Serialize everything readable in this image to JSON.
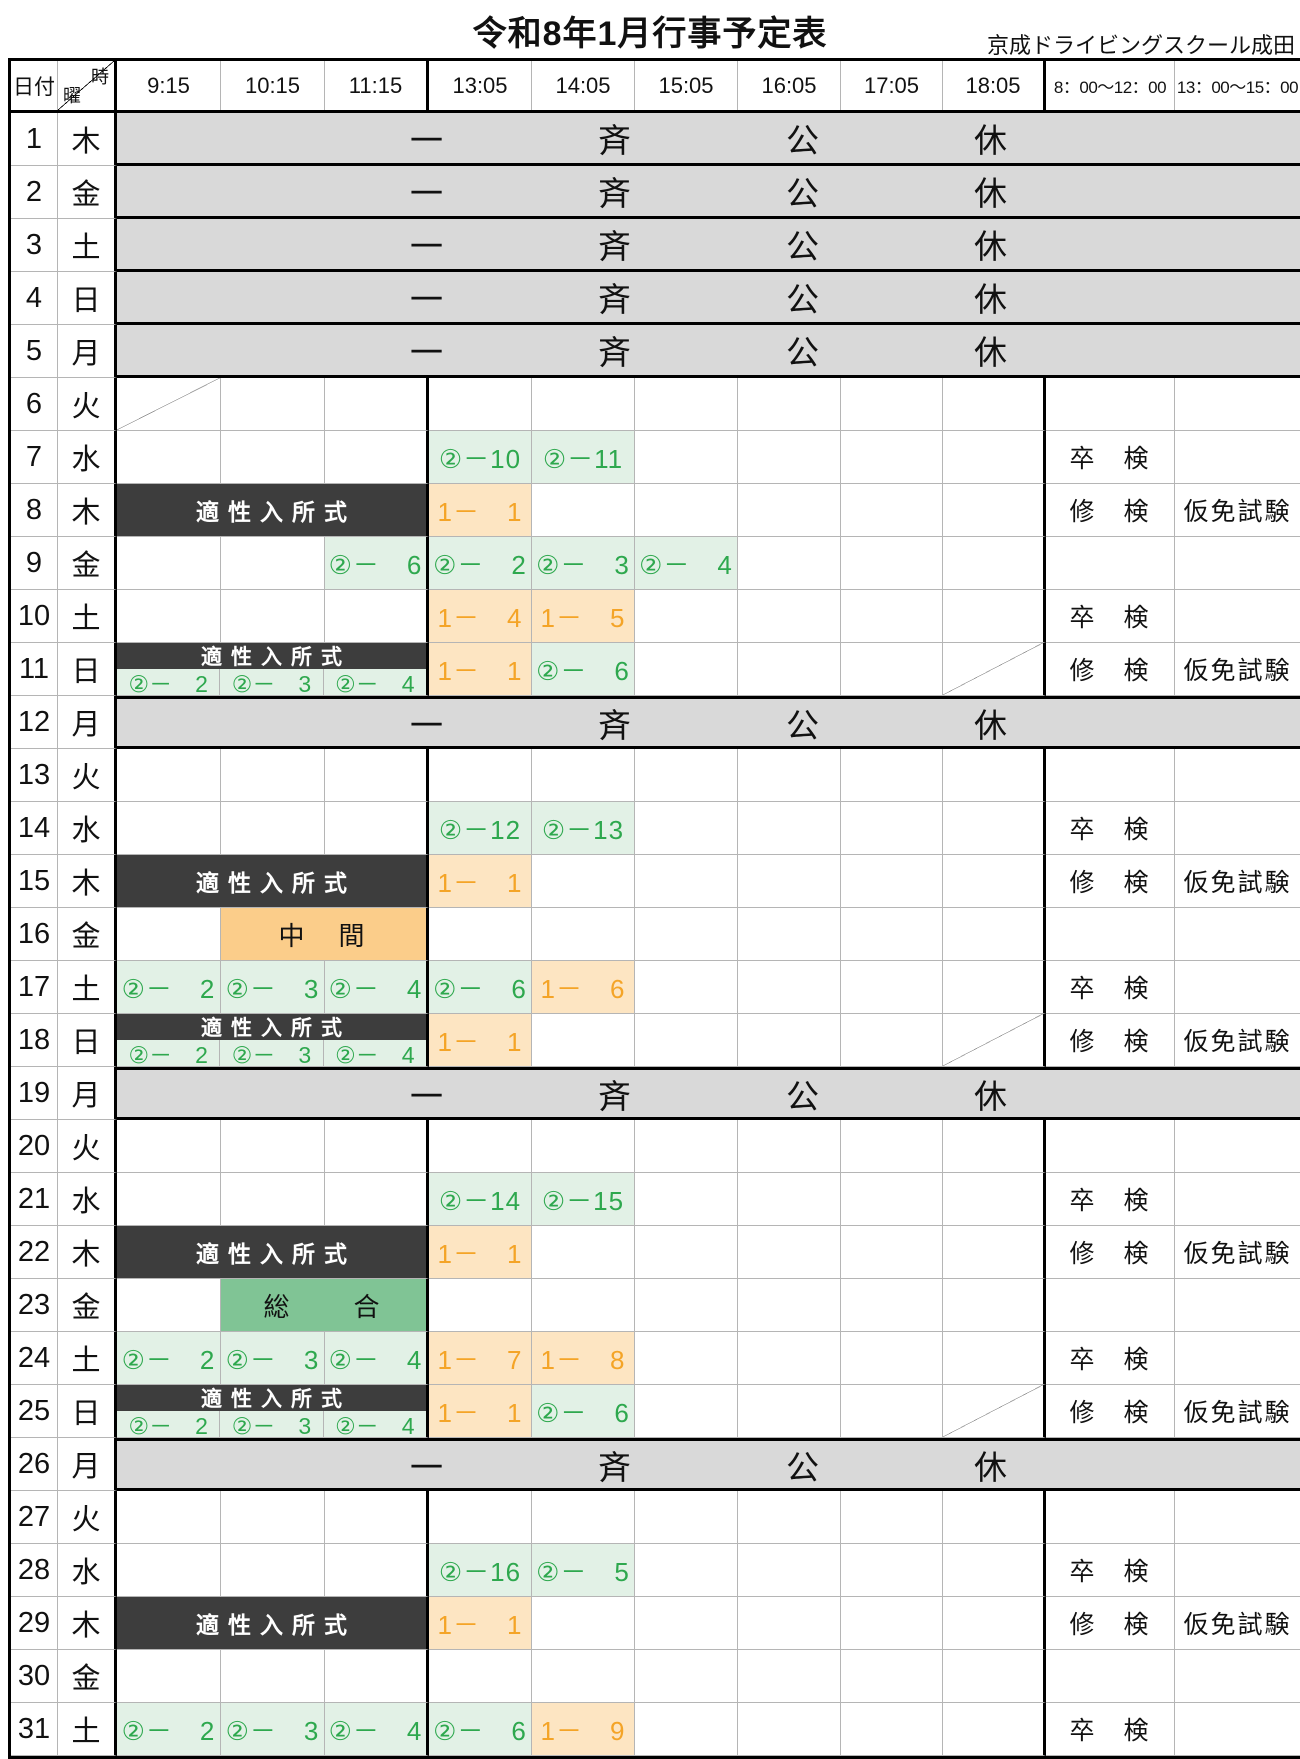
{
  "title": "令和8年1月行事予定表",
  "subtitle": "京成ドライビングスクール成田",
  "header": {
    "date_label": "日付",
    "time_label": "時",
    "day_label": "曜",
    "time_columns": [
      "9:15",
      "10:15",
      "11:15",
      "13:05",
      "14:05",
      "15:05",
      "16:05",
      "17:05",
      "18:05"
    ],
    "exam_columns": [
      "8：00～12：00",
      "13：00～15：00"
    ]
  },
  "labels": {
    "holiday": "一斉公休",
    "ceremony": "適性入所式",
    "midterm": "中　間",
    "sougou": "総　　合",
    "sotsuken": "卒　検",
    "shuken": "修　検",
    "karimen": "仮免試験"
  },
  "colors": {
    "holiday_bg": "#d9d9d9",
    "ceremony_bg": "#3d3d3d",
    "ceremony_text": "#ffffff",
    "lesson2_bg": "#e2f1e6",
    "lesson2_text": "#2ea84e",
    "lesson1_bg": "#fde5c2",
    "lesson1_text": "#f4a427",
    "midterm_bg": "#fbcd8a",
    "sougou_bg": "#80c495"
  },
  "rows": [
    {
      "date": "1",
      "day": "木",
      "type": "holiday"
    },
    {
      "date": "2",
      "day": "金",
      "type": "holiday"
    },
    {
      "date": "3",
      "day": "土",
      "type": "holiday"
    },
    {
      "date": "4",
      "day": "日",
      "type": "holiday"
    },
    {
      "date": "5",
      "day": "月",
      "type": "holiday"
    },
    {
      "date": "6",
      "day": "火",
      "type": "normal",
      "diag_first": true,
      "cells": [],
      "exam": ""
    },
    {
      "date": "7",
      "day": "水",
      "type": "normal",
      "cells": [
        {
          "col": 3,
          "text": "②－10",
          "style": "green"
        },
        {
          "col": 4,
          "text": "②－11",
          "style": "green"
        }
      ],
      "exam": "sotsuken"
    },
    {
      "date": "8",
      "day": "木",
      "type": "normal",
      "ceremony": "full",
      "cells": [
        {
          "col": 3,
          "text": "1－　1",
          "style": "orange"
        }
      ],
      "exam": "karimen"
    },
    {
      "date": "9",
      "day": "金",
      "type": "normal",
      "cells": [
        {
          "col": 2,
          "text": "②－　6",
          "style": "green"
        },
        {
          "col": 3,
          "text": "②－　2",
          "style": "green"
        },
        {
          "col": 4,
          "text": "②－　3",
          "style": "green"
        },
        {
          "col": 5,
          "text": "②－　4",
          "style": "green"
        }
      ],
      "exam": ""
    },
    {
      "date": "10",
      "day": "土",
      "type": "normal",
      "cells": [
        {
          "col": 3,
          "text": "1－　4",
          "style": "orange"
        },
        {
          "col": 4,
          "text": "1－　5",
          "style": "orange"
        }
      ],
      "exam": "sotsuken"
    },
    {
      "date": "11",
      "day": "日",
      "type": "normal",
      "ceremony": "half",
      "subcells": [
        "②－　2",
        "②－　3",
        "②－　4"
      ],
      "cells": [
        {
          "col": 3,
          "text": "1－　1",
          "style": "orange"
        },
        {
          "col": 4,
          "text": "②－　6",
          "style": "green"
        }
      ],
      "diag_last": true,
      "exam": "karimen"
    },
    {
      "date": "12",
      "day": "月",
      "type": "holiday"
    },
    {
      "date": "13",
      "day": "火",
      "type": "normal",
      "cells": [],
      "exam": ""
    },
    {
      "date": "14",
      "day": "水",
      "type": "normal",
      "cells": [
        {
          "col": 3,
          "text": "②－12",
          "style": "green"
        },
        {
          "col": 4,
          "text": "②－13",
          "style": "green"
        }
      ],
      "exam": "sotsuken"
    },
    {
      "date": "15",
      "day": "木",
      "type": "normal",
      "ceremony": "full",
      "cells": [
        {
          "col": 3,
          "text": "1－　1",
          "style": "orange"
        }
      ],
      "exam": "karimen"
    },
    {
      "date": "16",
      "day": "金",
      "type": "normal",
      "band": "midterm",
      "cells": [],
      "exam": ""
    },
    {
      "date": "17",
      "day": "土",
      "type": "normal",
      "cells": [
        {
          "col": 0,
          "text": "②－　2",
          "style": "green"
        },
        {
          "col": 1,
          "text": "②－　3",
          "style": "green"
        },
        {
          "col": 2,
          "text": "②－　4",
          "style": "green"
        },
        {
          "col": 3,
          "text": "②－　6",
          "style": "green"
        },
        {
          "col": 4,
          "text": "1－　6",
          "style": "orange"
        }
      ],
      "exam": "sotsuken"
    },
    {
      "date": "18",
      "day": "日",
      "type": "normal",
      "ceremony": "half",
      "subcells": [
        "②－　2",
        "②－　3",
        "②－　4"
      ],
      "cells": [
        {
          "col": 3,
          "text": "1－　1",
          "style": "orange"
        }
      ],
      "diag_last": true,
      "exam": "karimen"
    },
    {
      "date": "19",
      "day": "月",
      "type": "holiday"
    },
    {
      "date": "20",
      "day": "火",
      "type": "normal",
      "cells": [],
      "exam": ""
    },
    {
      "date": "21",
      "day": "水",
      "type": "normal",
      "cells": [
        {
          "col": 3,
          "text": "②－14",
          "style": "green"
        },
        {
          "col": 4,
          "text": "②－15",
          "style": "green"
        }
      ],
      "exam": "sotsuken"
    },
    {
      "date": "22",
      "day": "木",
      "type": "normal",
      "ceremony": "full",
      "cells": [
        {
          "col": 3,
          "text": "1－　1",
          "style": "orange"
        }
      ],
      "exam": "karimen"
    },
    {
      "date": "23",
      "day": "金",
      "type": "normal",
      "band": "sougou",
      "cells": [],
      "exam": ""
    },
    {
      "date": "24",
      "day": "土",
      "type": "normal",
      "cells": [
        {
          "col": 0,
          "text": "②－　2",
          "style": "green"
        },
        {
          "col": 1,
          "text": "②－　3",
          "style": "green"
        },
        {
          "col": 2,
          "text": "②－　4",
          "style": "green"
        },
        {
          "col": 3,
          "text": "1－　7",
          "style": "orange"
        },
        {
          "col": 4,
          "text": "1－　8",
          "style": "orange"
        }
      ],
      "exam": "sotsuken"
    },
    {
      "date": "25",
      "day": "日",
      "type": "normal",
      "ceremony": "half",
      "subcells": [
        "②－　2",
        "②－　3",
        "②－　4"
      ],
      "cells": [
        {
          "col": 3,
          "text": "1－　1",
          "style": "orange"
        },
        {
          "col": 4,
          "text": "②－　6",
          "style": "green"
        }
      ],
      "diag_last": true,
      "exam": "karimen"
    },
    {
      "date": "26",
      "day": "月",
      "type": "holiday"
    },
    {
      "date": "27",
      "day": "火",
      "type": "normal",
      "cells": [],
      "exam": ""
    },
    {
      "date": "28",
      "day": "水",
      "type": "normal",
      "cells": [
        {
          "col": 3,
          "text": "②－16",
          "style": "green"
        },
        {
          "col": 4,
          "text": "②－　5",
          "style": "green"
        }
      ],
      "exam": "sotsuken"
    },
    {
      "date": "29",
      "day": "木",
      "type": "normal",
      "ceremony": "full",
      "cells": [
        {
          "col": 3,
          "text": "1－　1",
          "style": "orange"
        }
      ],
      "exam": "karimen"
    },
    {
      "date": "30",
      "day": "金",
      "type": "normal",
      "cells": [],
      "exam": ""
    },
    {
      "date": "31",
      "day": "土",
      "type": "normal",
      "cells": [
        {
          "col": 0,
          "text": "②－　2",
          "style": "green"
        },
        {
          "col": 1,
          "text": "②－　3",
          "style": "green"
        },
        {
          "col": 2,
          "text": "②－　4",
          "style": "green"
        },
        {
          "col": 3,
          "text": "②－　6",
          "style": "green"
        },
        {
          "col": 4,
          "text": "1－　9",
          "style": "orange"
        }
      ],
      "exam": "sotsuken"
    }
  ]
}
